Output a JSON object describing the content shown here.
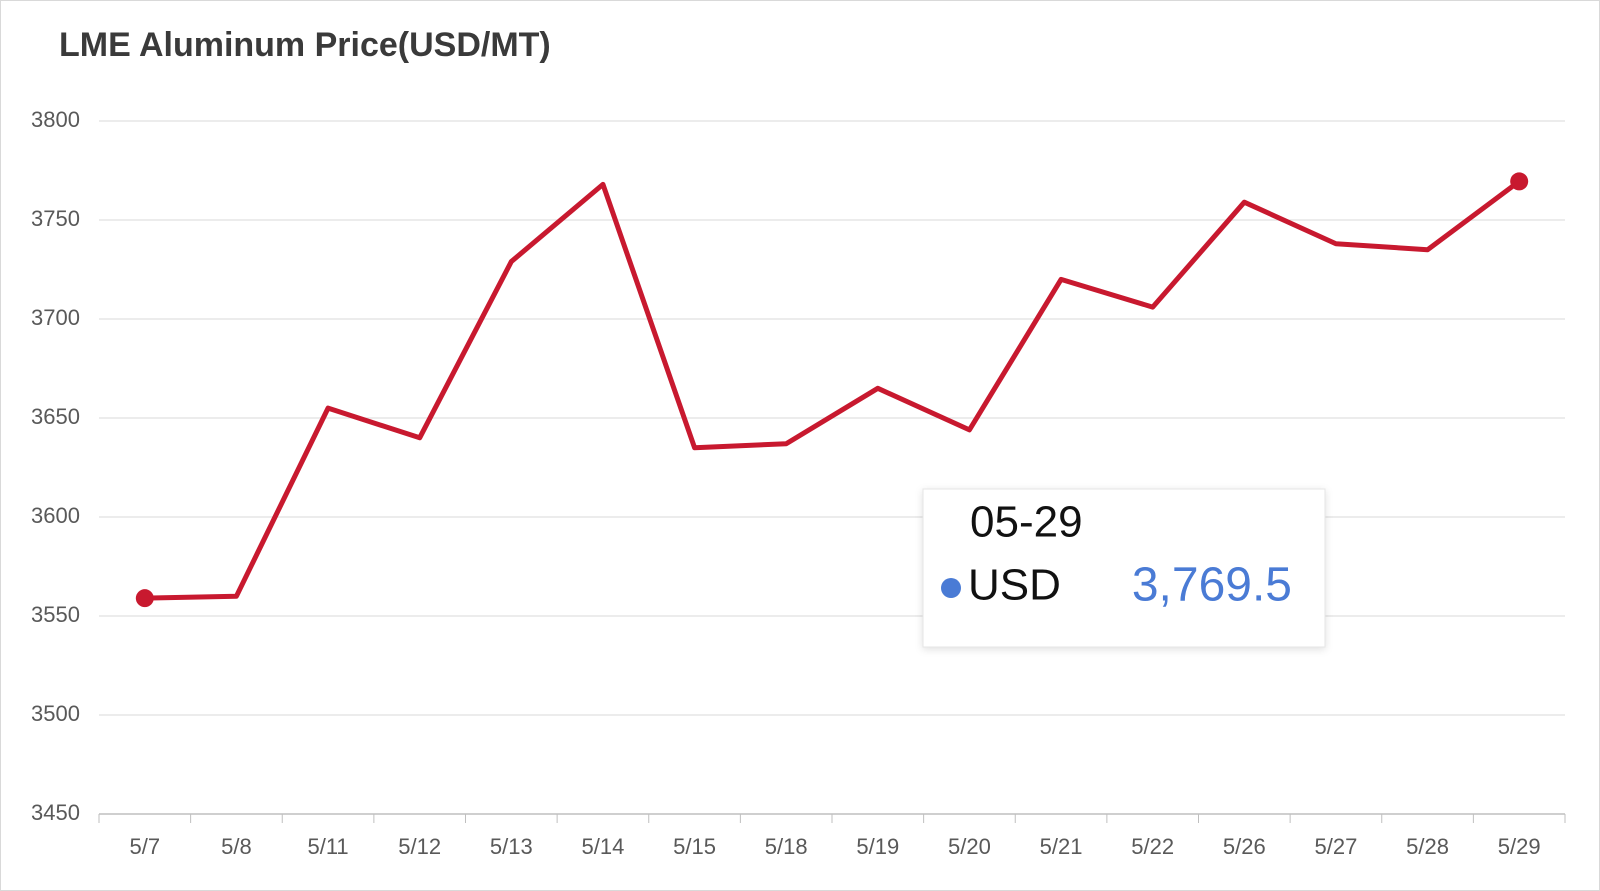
{
  "chart_data": {
    "type": "line",
    "title": "LME Aluminum Price(USD/MT)",
    "categories": [
      "5/7",
      "5/8",
      "5/11",
      "5/12",
      "5/13",
      "5/14",
      "5/15",
      "5/18",
      "5/19",
      "5/20",
      "5/21",
      "5/22",
      "5/26",
      "5/27",
      "5/28",
      "5/29"
    ],
    "series": [
      {
        "name": "USD",
        "color": "#c8192f",
        "values": [
          3559,
          3560,
          3655,
          3640,
          3729,
          3768,
          3635,
          3637,
          3665,
          3644,
          3720,
          3706,
          3759,
          3738,
          3735,
          3769.5
        ]
      }
    ],
    "ylim": [
      3450,
      3800
    ],
    "yticks": [
      3450,
      3500,
      3550,
      3600,
      3650,
      3700,
      3750,
      3800
    ],
    "grid": true,
    "tooltip": {
      "title": "05-29",
      "value": 3769.5,
      "value_label": "3,769.5",
      "dot_color": "#4a7bd5"
    }
  }
}
